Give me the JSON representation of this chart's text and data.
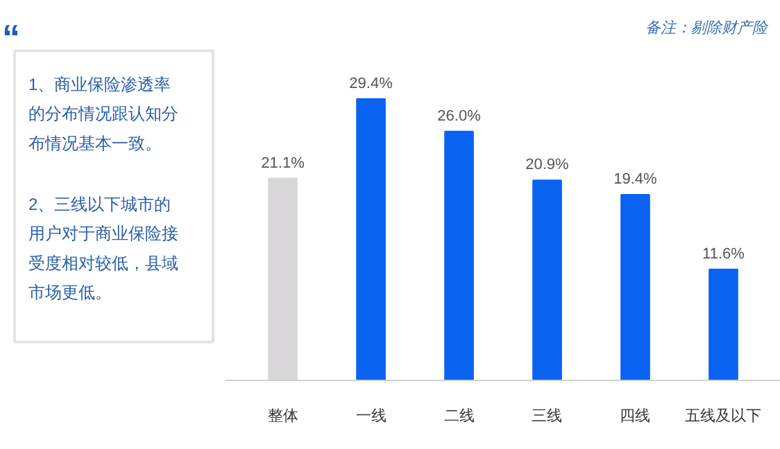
{
  "chart_data": [
    {
      "type": "other",
      "annotations": [
        "“",
        "1、商业保险渗透率的分布情况跟认知分布情况基本一致。",
        "2、三线以下城市的用户对于商业保险接受度相对较低，县域市场更低。"
      ]
    },
    {
      "type": "bar",
      "categories": [
        "整体",
        "一线",
        "二线",
        "三线",
        "四线",
        "五线及以下"
      ],
      "values": [
        21.1,
        29.4,
        26.0,
        20.9,
        19.4,
        11.6
      ],
      "colors": [
        "#d9d7d9",
        "#0a62f0",
        "#0a62f0",
        "#0a62f0",
        "#0a62f0",
        "#0a62f0"
      ],
      "value_labels": [
        "21.1%",
        "29.4%",
        "26.0%",
        "20.9%",
        "19.4%",
        "11.6%"
      ],
      "annotations": [
        "备注：剔除财产险"
      ]
    }
  ]
}
